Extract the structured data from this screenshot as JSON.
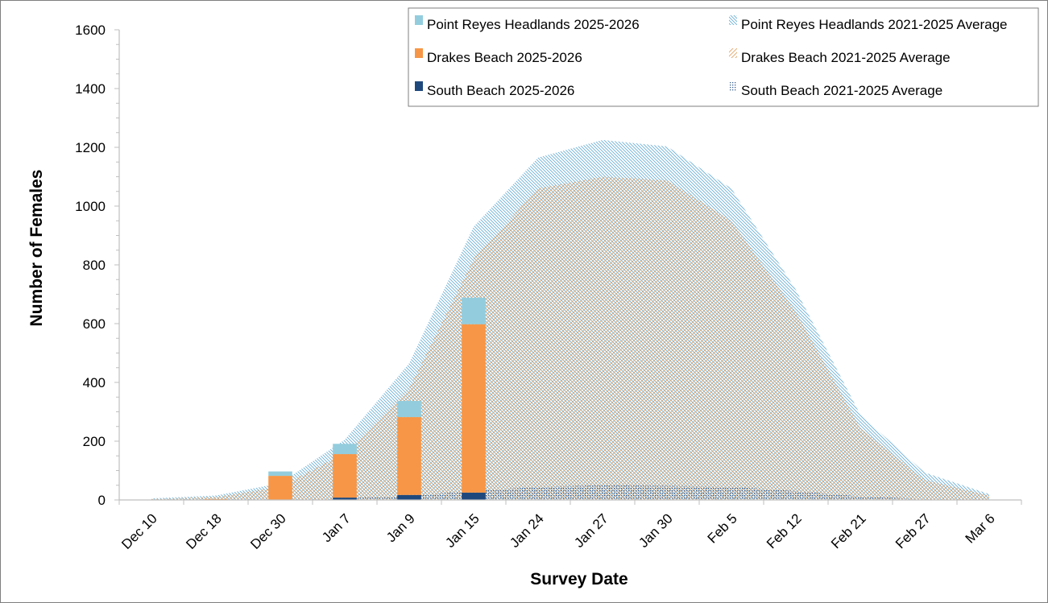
{
  "chart_data": {
    "type": "area+stacked-bar",
    "categories": [
      "Dec 10",
      "Dec 18",
      "Dec 30",
      "Jan 7",
      "Jan 9",
      "Jan 15",
      "Jan 24",
      "Jan 27",
      "Jan 30",
      "Feb 5",
      "Feb 12",
      "Feb 21",
      "Feb 27",
      "Mar 6"
    ],
    "xlabel": "Survey Date",
    "ylabel": "Number of Females",
    "ylim": [
      0,
      1600
    ],
    "yticks": [
      0,
      200,
      400,
      600,
      800,
      1000,
      1200,
      1400,
      1600
    ],
    "legend_position": "top-right",
    "area_series": [
      {
        "name": "Point Reyes Headlands 2021-2025 Average",
        "color": "#6baed6",
        "pattern": "diag-back",
        "values": [
          2,
          5,
          12,
          45,
          85,
          110,
          105,
          125,
          115,
          110,
          75,
          45,
          25,
          5
        ]
      },
      {
        "name": "Drakes Beach 2021-2025 Average",
        "color": "#e6a15a",
        "pattern": "diag-fwd",
        "values": [
          3,
          10,
          45,
          155,
          365,
          790,
          1015,
          1050,
          1040,
          905,
          610,
          233,
          65,
          15
        ]
      },
      {
        "name": "South Beach 2021-2025 Average",
        "color": "#3a5f8f",
        "pattern": "dots",
        "values": [
          0,
          0,
          0,
          5,
          15,
          30,
          45,
          50,
          48,
          45,
          30,
          12,
          3,
          0
        ]
      }
    ],
    "bar_series": [
      {
        "name": "Point Reyes Headlands 2025-2026",
        "color": "#93cddd",
        "values": [
          0,
          0,
          15,
          35,
          55,
          90,
          null,
          null,
          null,
          null,
          null,
          null,
          null,
          null
        ]
      },
      {
        "name": "Drakes Beach 2025-2026",
        "color": "#f79646",
        "values": [
          0,
          3,
          82,
          148,
          265,
          573,
          null,
          null,
          null,
          null,
          null,
          null,
          null,
          null
        ]
      },
      {
        "name": "South Beach 2025-2026",
        "color": "#1f497d",
        "values": [
          0,
          0,
          0,
          8,
          17,
          25,
          null,
          null,
          null,
          null,
          null,
          null,
          null,
          null
        ]
      }
    ]
  },
  "legend": {
    "items": [
      {
        "label": "Point Reyes Headlands 2025-2026",
        "swatch": "solid",
        "color": "#93cddd"
      },
      {
        "label": "Point Reyes Headlands 2021-2025 Average",
        "swatch": "diag-back",
        "color": "#6baed6"
      },
      {
        "label": "Drakes Beach 2025-2026",
        "swatch": "solid",
        "color": "#f79646"
      },
      {
        "label": "Drakes Beach 2021-2025 Average",
        "swatch": "diag-fwd",
        "color": "#e6a15a"
      },
      {
        "label": "South Beach 2025-2026",
        "swatch": "solid",
        "color": "#1f497d"
      },
      {
        "label": "South Beach 2021-2025 Average",
        "swatch": "dots",
        "color": "#3a5f8f"
      }
    ]
  }
}
